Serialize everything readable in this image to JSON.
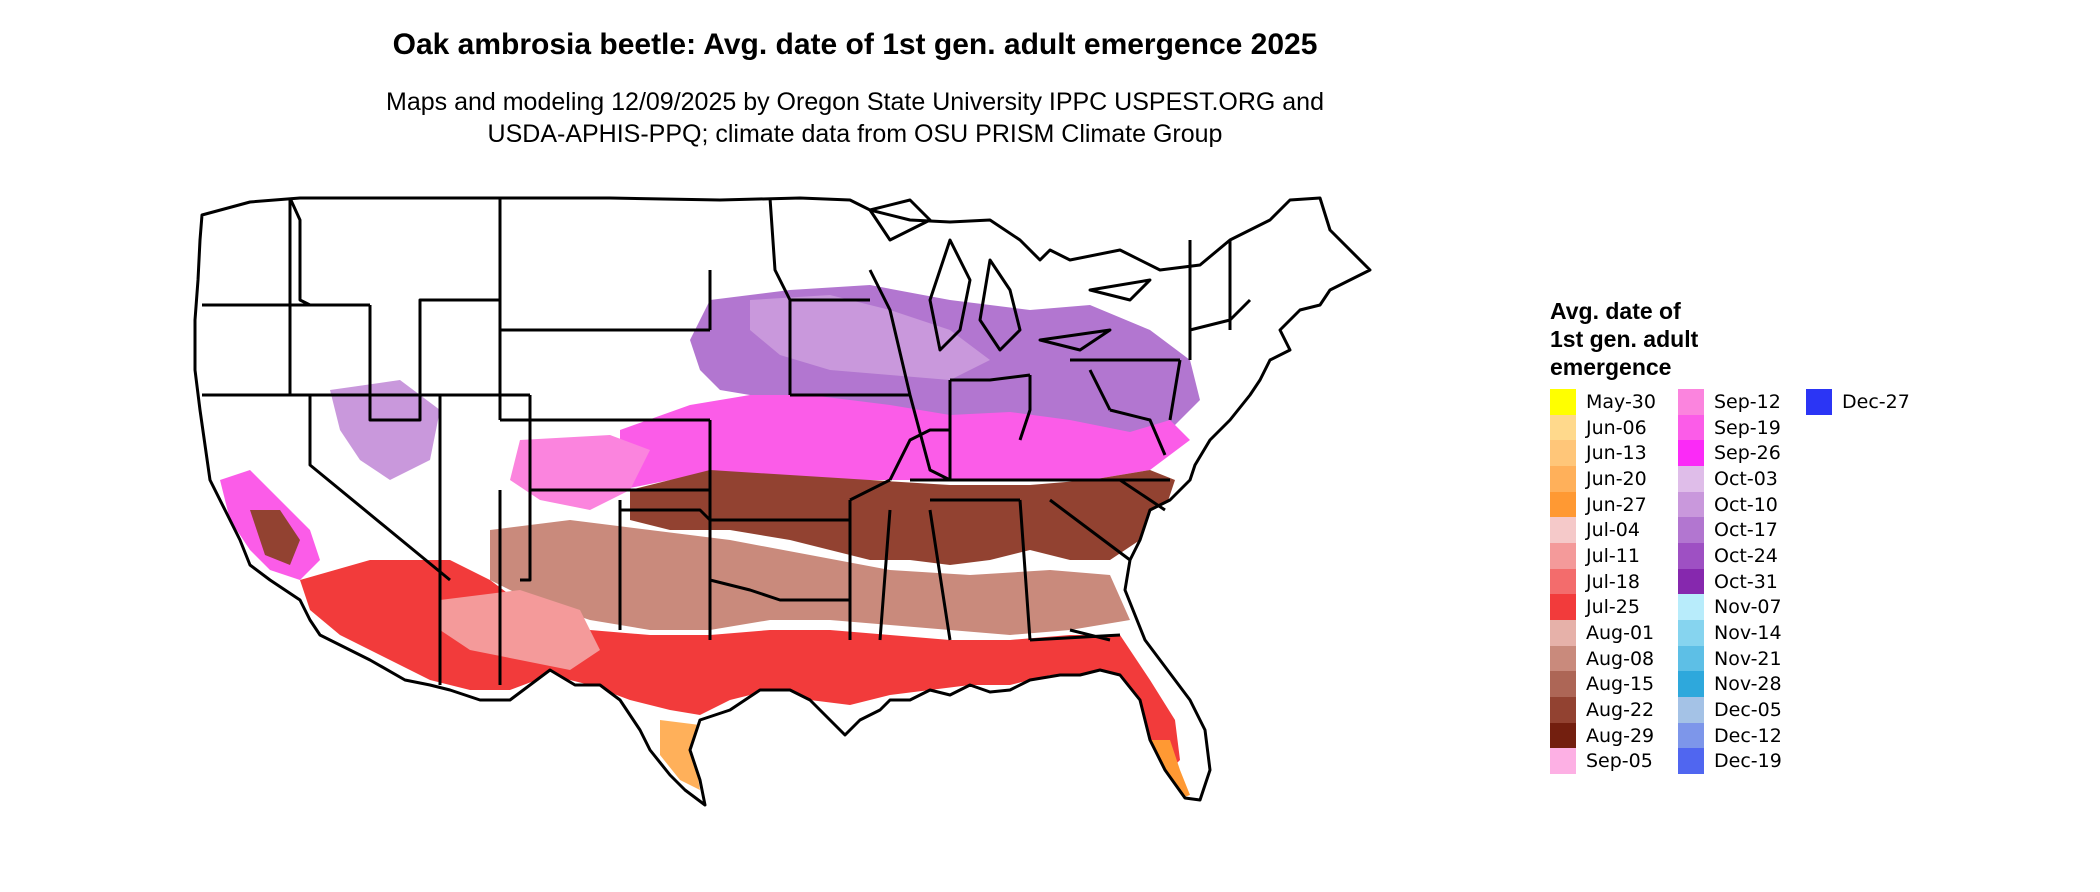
{
  "title": "Oak ambrosia beetle: Avg. date of 1st gen. adult emergence 2025",
  "subtitle_lines": [
    "Maps and modeling 12/09/2025 by Oregon State University IPPC USPEST.ORG and",
    "USDA-APHIS-PPQ; climate data from OSU PRISM Climate Group"
  ],
  "legend": {
    "title_lines": [
      "Avg. date of",
      "1st gen. adult",
      "emergence"
    ],
    "columns": [
      [
        {
          "label": "May-30",
          "color": "#ffff00"
        },
        {
          "label": "Jun-06",
          "color": "#ffd98c"
        },
        {
          "label": "Jun-13",
          "color": "#ffc679"
        },
        {
          "label": "Jun-20",
          "color": "#ffb05a"
        },
        {
          "label": "Jun-27",
          "color": "#ff9933"
        },
        {
          "label": "Jul-04",
          "color": "#f5c9c9"
        },
        {
          "label": "Jul-11",
          "color": "#f49a9a"
        },
        {
          "label": "Jul-18",
          "color": "#f36c6c"
        },
        {
          "label": "Jul-25",
          "color": "#f23b3b"
        },
        {
          "label": "Aug-01",
          "color": "#e6b1a9"
        },
        {
          "label": "Aug-08",
          "color": "#c98a7c"
        },
        {
          "label": "Aug-15",
          "color": "#ad6656"
        },
        {
          "label": "Aug-22",
          "color": "#924231"
        },
        {
          "label": "Aug-29",
          "color": "#731f0f"
        },
        {
          "label": "Sep-05",
          "color": "#fdb0e4"
        }
      ],
      [
        {
          "label": "Sep-12",
          "color": "#fb84de"
        },
        {
          "label": "Sep-19",
          "color": "#fb5ce8"
        },
        {
          "label": "Sep-26",
          "color": "#fb2af7"
        },
        {
          "label": "Oct-03",
          "color": "#dfbde9"
        },
        {
          "label": "Oct-10",
          "color": "#c998dc"
        },
        {
          "label": "Oct-17",
          "color": "#b276d0"
        },
        {
          "label": "Oct-24",
          "color": "#9e50c3"
        },
        {
          "label": "Oct-31",
          "color": "#8628ae"
        },
        {
          "label": "Nov-07",
          "color": "#b8ecfb"
        },
        {
          "label": "Nov-14",
          "color": "#86d4ef"
        },
        {
          "label": "Nov-21",
          "color": "#5dbfe6"
        },
        {
          "label": "Nov-28",
          "color": "#2ea8dc"
        },
        {
          "label": "Dec-05",
          "color": "#a4c2e6"
        },
        {
          "label": "Dec-12",
          "color": "#7d96ea"
        },
        {
          "label": "Dec-19",
          "color": "#5066f0"
        }
      ],
      [
        {
          "label": "Dec-27",
          "color": "#2b35f5"
        }
      ]
    ]
  }
}
